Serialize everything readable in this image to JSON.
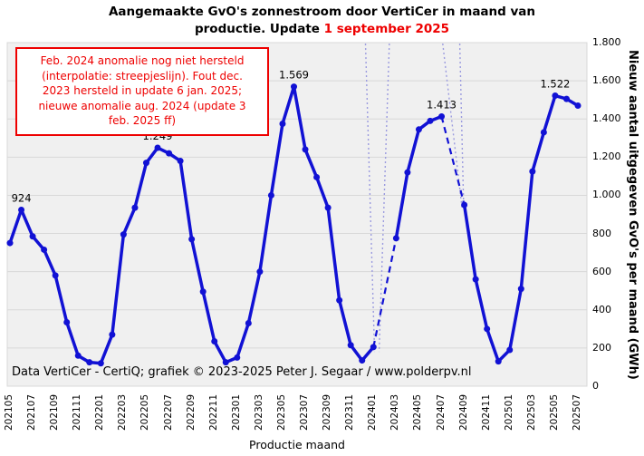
{
  "title": {
    "line1": "Aangemaakte GvO's zonnestroom door VertiCer in maand van",
    "line2_black": "productie.  Update ",
    "line2_red": "1 september 2025"
  },
  "annotation": {
    "lines": [
      "Feb. 2024 anomalie nog niet hersteld",
      "(interpolatie: streepjeslijn). Fout dec.",
      "2023 hersteld in update 6 jan. 2025;",
      "nieuwe anomalie aug. 2024 (update 3",
      "feb. 2025 ff)"
    ]
  },
  "footer": "Data VertiCer - CertiQ;  grafiek  © 2023-2025  Peter J. Segaar / www.polderpv.nl",
  "colors": {
    "line": "#1111d4",
    "plot_bg": "#f0f0f0",
    "grid": "#d8d8d8",
    "guide": "#9b9bdf",
    "red": "#ee0000",
    "text": "#000000"
  },
  "chart_data": {
    "type": "line",
    "title": "Aangemaakte GvO's zonnestroom door VertiCer in maand van productie. Update 1 september 2025",
    "xlabel": "Productie maand",
    "ylabel": "Nieuw  aantal uitgegeven GvO's per maand  (GWh)",
    "unit": "GWh",
    "ylim": [
      0,
      1800
    ],
    "ytick_step": 200,
    "ytick_labels": [
      "0",
      "200",
      "400",
      "600",
      "800",
      "1.000",
      "1.200",
      "1.400",
      "1.600",
      "1.800"
    ],
    "xtick_every": 2,
    "grid": true,
    "x": [
      "202105",
      "202106",
      "202107",
      "202108",
      "202109",
      "202110",
      "202111",
      "202112",
      "202201",
      "202202",
      "202203",
      "202204",
      "202205",
      "202206",
      "202207",
      "202208",
      "202209",
      "202210",
      "202211",
      "202212",
      "202301",
      "202302",
      "202303",
      "202304",
      "202305",
      "202306",
      "202307",
      "202308",
      "202309",
      "202310",
      "202311",
      "202312",
      "202401",
      "202402",
      "202403",
      "202404",
      "202405",
      "202406",
      "202407",
      "202408",
      "202409",
      "202410",
      "202411",
      "202412",
      "202501",
      "202502",
      "202503",
      "202504",
      "202505",
      "202506",
      "202507"
    ],
    "values": [
      750,
      924,
      785,
      715,
      580,
      335,
      160,
      125,
      120,
      270,
      795,
      935,
      1170,
      1249,
      1220,
      1180,
      770,
      495,
      235,
      125,
      150,
      330,
      600,
      1000,
      1375,
      1569,
      1240,
      1095,
      935,
      450,
      215,
      135,
      205,
      null,
      775,
      1120,
      1345,
      1390,
      1413,
      null,
      950,
      560,
      300,
      130,
      190,
      510,
      1125,
      1330,
      1522,
      1505,
      1470
    ],
    "anomaly_months": [
      "202402",
      "202408"
    ],
    "anomaly_note": "null values are anomalies bridged by dashed interpolation line",
    "point_labels": [
      {
        "month": "202106",
        "text": "924"
      },
      {
        "month": "202206",
        "text": "1.249"
      },
      {
        "month": "202306",
        "text": "1.569"
      },
      {
        "month": "202407",
        "text": "1.413"
      },
      {
        "month": "202505",
        "text": "1.522"
      }
    ],
    "guide_lines": [
      {
        "m1": 31.3,
        "v1": 1795,
        "m2": 32.1,
        "v2": 180
      },
      {
        "m1": 33.4,
        "v1": 1795,
        "m2": 32.5,
        "v2": 180
      },
      {
        "m1": 38.1,
        "v1": 1795,
        "m2": 39.8,
        "v2": 935
      },
      {
        "m1": 39.6,
        "v1": 1795,
        "m2": 39.95,
        "v2": 925
      }
    ]
  }
}
